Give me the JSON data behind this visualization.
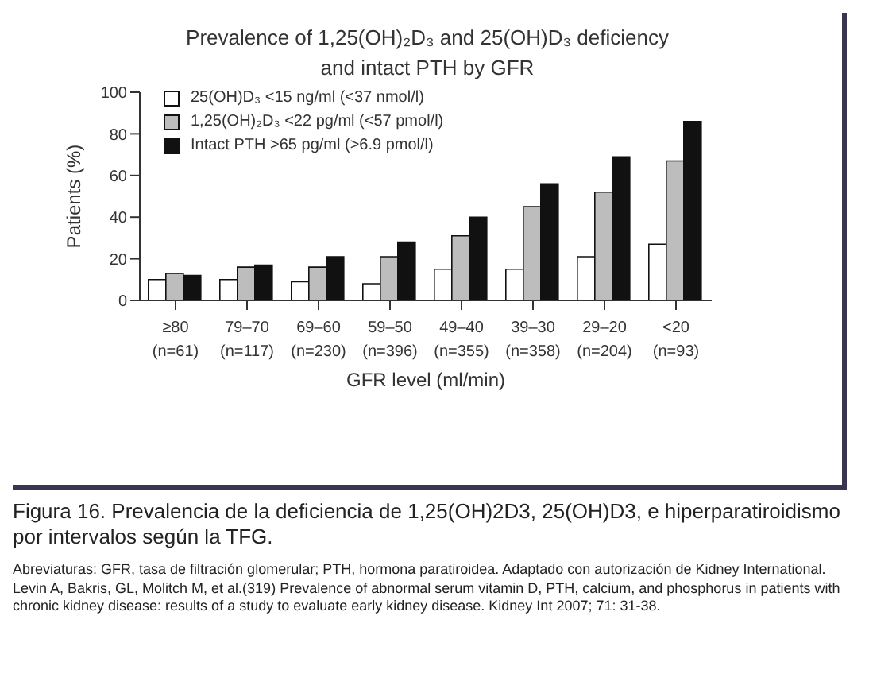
{
  "chart_data": {
    "type": "bar",
    "title": "Prevalence of 1,25(OH)₂D₃ and 25(OH)D₃ deficiency\nand intact PTH by GFR",
    "xlabel": "GFR level (ml/min)",
    "ylabel": "Patients (%)",
    "categories": [
      "≥80\n(n=61)",
      "79–70\n(n=117)",
      "69–60\n(n=230)",
      "59–50\n(n=396)",
      "49–40\n(n=355)",
      "39–30\n(n=358)",
      "29–20\n(n=204)",
      "<20\n(n=93)"
    ],
    "series": [
      {
        "name": "25(OH)D₃ <15 ng/ml (<37 nmol/l)",
        "color": "#ffffff",
        "values": [
          10,
          10,
          9,
          8,
          15,
          15,
          21,
          27
        ]
      },
      {
        "name": "1,25(OH)₂D₃ <22 pg/ml (<57 pmol/l)",
        "color": "#bdbdbd",
        "values": [
          13,
          16,
          16,
          21,
          31,
          45,
          52,
          67
        ]
      },
      {
        "name": "Intact PTH >65 pg/ml (>6.9 pmol/l)",
        "color": "#111111",
        "values": [
          12,
          17,
          21,
          28,
          40,
          56,
          69,
          86
        ]
      }
    ],
    "ylim": [
      0,
      100
    ],
    "yticks": [
      0,
      20,
      40,
      60,
      80,
      100
    ],
    "grid": false,
    "legend": "top left",
    "annotations": [
      "Figura 16. Prevalencia de la deficiencia de 1,25(OH)2D3, 25(OH)D3, e hiperparatiroidismo por intervalos según la TFG.",
      "Abreviaturas: GFR, tasa de filtración glomerular; PTH, hormona paratiroidea. Adaptado con autorización de Kidney International. Levin A, Bakris, GL, Molitch M, et al.(319) Prevalence of abnormal serum vitamin D, PTH, calcium, and phosphorus in patients with chronic kidney disease: results of a study to evaluate early kidney disease. Kidney Int 2007; 71: 31-38."
    ]
  }
}
